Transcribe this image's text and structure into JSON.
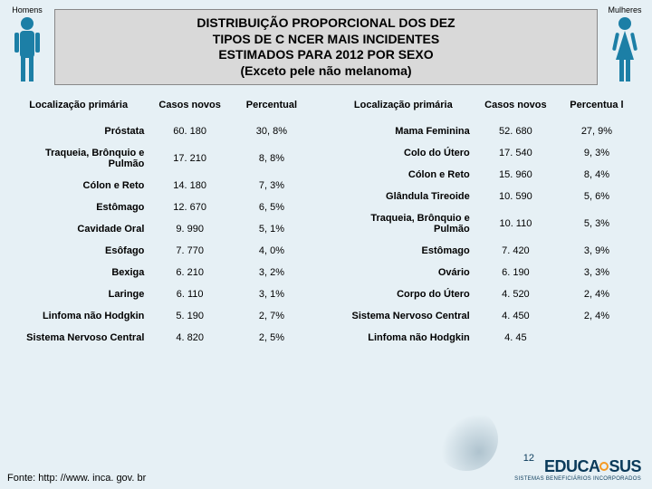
{
  "title_lines": [
    "DISTRIBUIÇÃO PROPORCIONAL DOS DEZ",
    "TIPOS DE C NCER MAIS INCIDENTES",
    "ESTIMADOS PARA 2012 POR SEXO",
    "(Exceto pele não melanoma)"
  ],
  "left_label": "Homens",
  "right_label": "Mulheres",
  "headers": {
    "loc": "Localização primária",
    "cases": "Casos novos",
    "pct": "Percentual",
    "pct_split": "Percentua l"
  },
  "left_rows": [
    {
      "loc": "Próstata",
      "cases": "60. 180",
      "pct": "30, 8%"
    },
    {
      "loc": "Traqueia, Brônquio e Pulmão",
      "cases": "17. 210",
      "pct": "8, 8%"
    },
    {
      "loc": "Cólon e Reto",
      "cases": "14. 180",
      "pct": "7, 3%"
    },
    {
      "loc": "Estômago",
      "cases": "12. 670",
      "pct": "6, 5%"
    },
    {
      "loc": "Cavidade Oral",
      "cases": "9. 990",
      "pct": "5, 1%"
    },
    {
      "loc": "Esôfago",
      "cases": "7. 770",
      "pct": "4, 0%"
    },
    {
      "loc": "Bexiga",
      "cases": "6. 210",
      "pct": "3, 2%"
    },
    {
      "loc": "Laringe",
      "cases": "6. 110",
      "pct": "3, 1%"
    },
    {
      "loc": "Linfoma não Hodgkin",
      "cases": "5. 190",
      "pct": "2, 7%"
    },
    {
      "loc": "Sistema Nervoso Central",
      "cases": "4. 820",
      "pct": "2, 5%"
    }
  ],
  "right_rows": [
    {
      "loc": "Mama Feminina",
      "cases": "52. 680",
      "pct": "27, 9%"
    },
    {
      "loc": "Colo do Útero",
      "cases": "17. 540",
      "pct": "9, 3%"
    },
    {
      "loc": "Cólon e Reto",
      "cases": "15. 960",
      "pct": "8, 4%"
    },
    {
      "loc": "Glândula Tireoide",
      "cases": "10. 590",
      "pct": "5, 6%"
    },
    {
      "loc": "Traqueia, Brônquio e Pulmão",
      "cases": "10. 110",
      "pct": "5, 3%"
    },
    {
      "loc": "Estômago",
      "cases": "7. 420",
      "pct": "3, 9%"
    },
    {
      "loc": "Ovário",
      "cases": "6. 190",
      "pct": "3, 3%"
    },
    {
      "loc": "Corpo do Útero",
      "cases": "4. 520",
      "pct": "2, 4%"
    },
    {
      "loc": "Sistema Nervoso Central",
      "cases": "4. 450",
      "pct": "2, 4%"
    },
    {
      "loc": "Linfoma não Hodgkin",
      "cases": "4. 45",
      "pct": ""
    }
  ],
  "source": "Fonte: http: //www. inca. gov. br",
  "page_no": "12",
  "brand": {
    "name": "EDUCASUS",
    "sub": "SISTEMAS BENEFICIÁRIOS INCORPORADOS"
  },
  "colors": {
    "banner_bg": "#d9d9d9",
    "page_bg": "#e6f0f5",
    "icon": "#1c7fa6",
    "brand": "#0a3a5a"
  }
}
